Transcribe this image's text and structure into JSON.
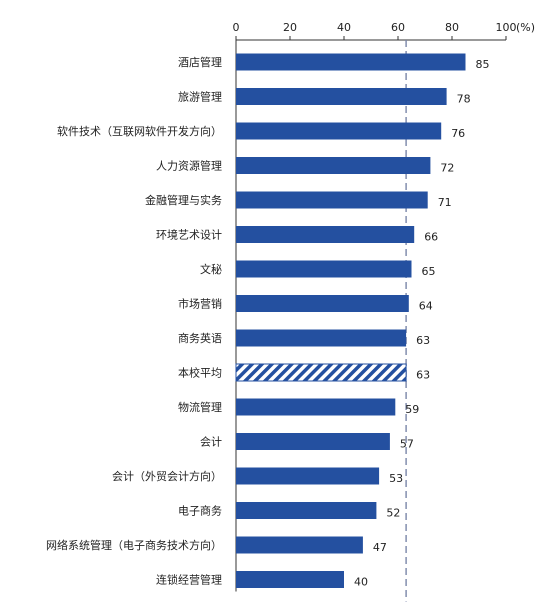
{
  "chart_data": {
    "type": "bar",
    "orientation": "horizontal",
    "title": "",
    "xlabel": "",
    "ylabel": "",
    "unit_label": "(%)",
    "xlim": [
      0,
      100
    ],
    "xticks": [
      "0",
      "20",
      "40",
      "60",
      "80",
      "100"
    ],
    "reference_line": 63,
    "categories": [
      "酒店管理",
      "旅游管理",
      "软件技术（互联网软件开发方向）",
      "人力资源管理",
      "金融管理与实务",
      "环境艺术设计",
      "文秘",
      "市场营销",
      "商务英语",
      "本校平均",
      "物流管理",
      "会计",
      "会计（外贸会计方向）",
      "电子商务",
      "网络系统管理（电子商务技术方向）",
      "连锁经营管理"
    ],
    "values": [
      85,
      78,
      76,
      72,
      71,
      66,
      65,
      64,
      63,
      63,
      59,
      57,
      53,
      52,
      47,
      40
    ],
    "value_labels": [
      "85",
      "78",
      "76",
      "72",
      "71",
      "66",
      "65",
      "64",
      "63",
      "63",
      "59",
      "57",
      "53",
      "52",
      "47",
      "40"
    ],
    "highlight_index": 9,
    "colors": {
      "bar": "#2450A0",
      "highlight_stripe": "#2450A0",
      "axis": "#333333",
      "reference_line": "#7A86A8"
    },
    "grid": false,
    "legend": "none"
  }
}
